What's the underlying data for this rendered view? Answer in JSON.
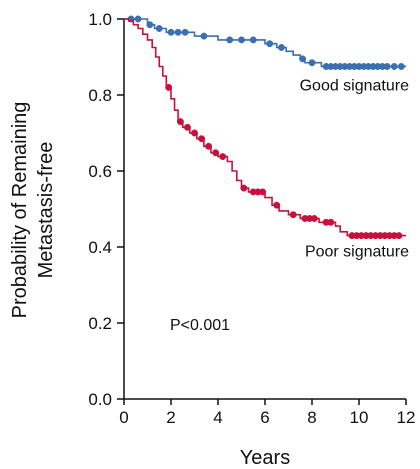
{
  "chart_data": {
    "type": "line",
    "xlabel": "Years",
    "ylabel_lines": [
      "Probability of Remaining",
      "Metastasis-free"
    ],
    "xlim": [
      0,
      12
    ],
    "ylim": [
      0,
      1.0
    ],
    "x_ticks": [
      "0",
      "2",
      "4",
      "6",
      "8",
      "10",
      "12"
    ],
    "y_ticks": [
      "0.0",
      "0.2",
      "0.4",
      "0.6",
      "0.8",
      "1.0"
    ],
    "grid": false,
    "annotation": "P<0.001",
    "series": [
      {
        "name": "Good signature",
        "color": "#3a6fb0",
        "steps": [
          [
            0,
            1.0
          ],
          [
            1.0,
            0.985
          ],
          [
            1.3,
            0.975
          ],
          [
            1.8,
            0.965
          ],
          [
            3.0,
            0.955
          ],
          [
            4.0,
            0.945
          ],
          [
            6.0,
            0.935
          ],
          [
            6.5,
            0.925
          ],
          [
            6.9,
            0.915
          ],
          [
            7.2,
            0.905
          ],
          [
            7.5,
            0.895
          ],
          [
            7.7,
            0.885
          ],
          [
            8.4,
            0.875
          ],
          [
            12.0,
            0.875
          ]
        ],
        "censor_x": [
          0.3,
          0.6,
          1.1,
          1.5,
          2.0,
          2.3,
          2.6,
          3.4,
          4.5,
          5.0,
          5.5,
          6.2,
          6.7,
          7.6,
          8.0,
          8.6,
          8.8,
          9.0,
          9.2,
          9.4,
          9.6,
          9.8,
          10.0,
          10.2,
          10.4,
          10.6,
          10.8,
          11.0,
          11.2,
          11.5,
          11.8
        ]
      },
      {
        "name": "Poor signature",
        "color": "#c8103c",
        "steps": [
          [
            0,
            1.0
          ],
          [
            0.2,
            0.995
          ],
          [
            0.4,
            0.985
          ],
          [
            0.6,
            0.975
          ],
          [
            0.8,
            0.96
          ],
          [
            1.0,
            0.945
          ],
          [
            1.2,
            0.925
          ],
          [
            1.35,
            0.9
          ],
          [
            1.5,
            0.875
          ],
          [
            1.65,
            0.85
          ],
          [
            1.8,
            0.82
          ],
          [
            2.0,
            0.79
          ],
          [
            2.15,
            0.76
          ],
          [
            2.3,
            0.73
          ],
          [
            2.5,
            0.715
          ],
          [
            2.8,
            0.7
          ],
          [
            3.1,
            0.685
          ],
          [
            3.4,
            0.665
          ],
          [
            3.7,
            0.648
          ],
          [
            4.0,
            0.638
          ],
          [
            4.4,
            0.625
          ],
          [
            4.6,
            0.6
          ],
          [
            4.8,
            0.575
          ],
          [
            5.0,
            0.555
          ],
          [
            5.3,
            0.545
          ],
          [
            6.0,
            0.53
          ],
          [
            6.3,
            0.51
          ],
          [
            6.6,
            0.495
          ],
          [
            7.0,
            0.485
          ],
          [
            7.5,
            0.475
          ],
          [
            8.3,
            0.465
          ],
          [
            9.0,
            0.455
          ],
          [
            9.2,
            0.44
          ],
          [
            9.5,
            0.43
          ],
          [
            12.0,
            0.43
          ]
        ],
        "censor_x": [
          1.9,
          2.4,
          2.7,
          3.0,
          3.3,
          3.6,
          3.9,
          4.2,
          5.1,
          5.5,
          5.7,
          5.9,
          6.5,
          7.2,
          7.7,
          7.9,
          8.1,
          8.6,
          8.8,
          9.7,
          9.9,
          10.1,
          10.3,
          10.5,
          10.7,
          10.9,
          11.1,
          11.3,
          11.5,
          11.7
        ]
      }
    ]
  }
}
